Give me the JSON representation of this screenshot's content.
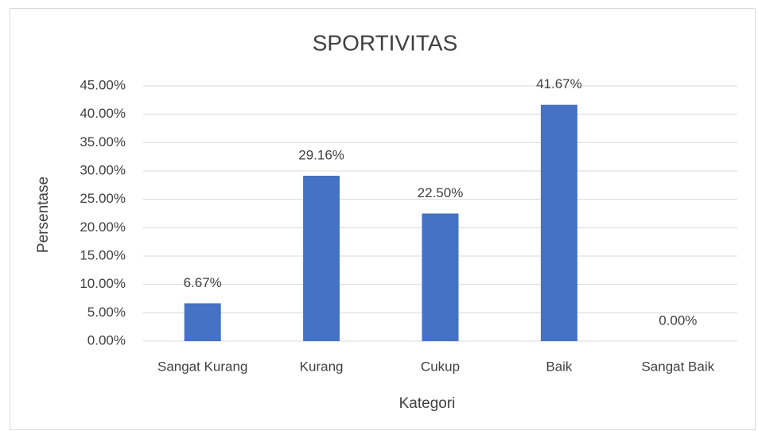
{
  "chart_data": {
    "type": "bar",
    "title": "SPORTIVITAS",
    "x_label": "Kategori",
    "y_label": "Persentase",
    "categories": [
      "Sangat Kurang",
      "Kurang",
      "Cukup",
      "Baik",
      "Sangat Baik"
    ],
    "values": [
      6.67,
      29.16,
      22.5,
      41.67,
      0
    ],
    "value_labels": [
      "6.67%",
      "29.16%",
      "22.50%",
      "41.67%",
      "0.00%"
    ],
    "color": "#4472c4",
    "ylim": [
      0,
      45
    ],
    "yticks": [
      {
        "value": 0,
        "label": "0.00%"
      },
      {
        "value": 5,
        "label": "5.00%"
      },
      {
        "value": 10,
        "label": "10.00%"
      },
      {
        "value": 15,
        "label": "15.00%"
      },
      {
        "value": 20,
        "label": "20.00%"
      },
      {
        "value": 25,
        "label": "25.00%"
      },
      {
        "value": 30,
        "label": "30.00%"
      },
      {
        "value": 35,
        "label": "35.00%"
      },
      {
        "value": 40,
        "label": "40.00%"
      },
      {
        "value": 45,
        "label": "45.00%"
      }
    ],
    "grid": true
  }
}
